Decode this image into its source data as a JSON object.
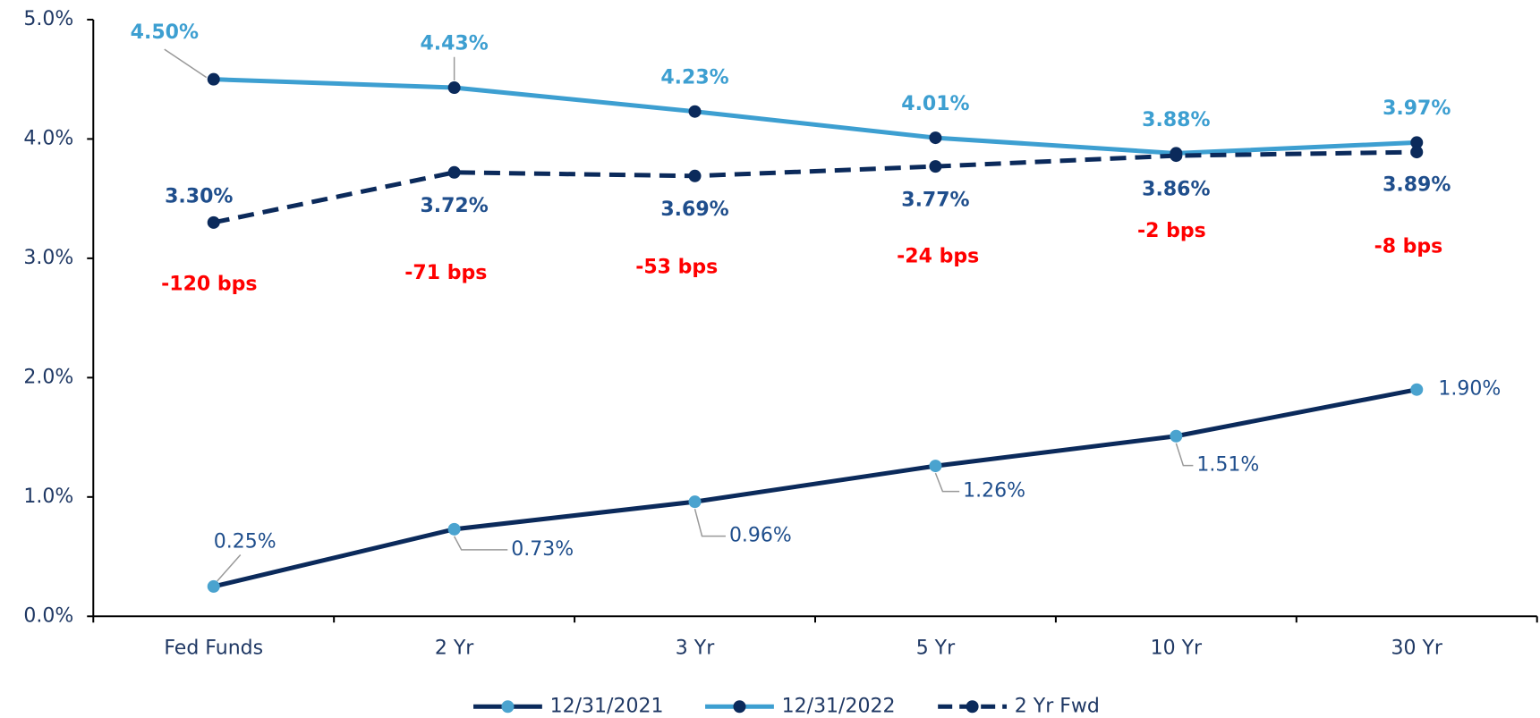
{
  "chart_data": {
    "type": "line",
    "categories": [
      "Fed Funds",
      "2 Yr",
      "3 Yr",
      "5 Yr",
      "10 Yr",
      "30 Yr"
    ],
    "ylim": [
      0,
      5
    ],
    "yticks": [
      {
        "value": 0,
        "label": "0.0%"
      },
      {
        "value": 1,
        "label": "1.0%"
      },
      {
        "value": 2,
        "label": "2.0%"
      },
      {
        "value": 3,
        "label": "3.0%"
      },
      {
        "value": 4,
        "label": "4.0%"
      },
      {
        "value": 5,
        "label": "5.0%"
      }
    ],
    "series": [
      {
        "name": "12/31/2021",
        "color": "#0b2a5b",
        "marker_color": "#4aa3cf",
        "dashed": false,
        "values": [
          0.25,
          0.73,
          0.96,
          1.26,
          1.51,
          1.9
        ],
        "value_labels": [
          "0.25%",
          "0.73%",
          "0.96%",
          "1.26%",
          "1.51%",
          "1.90%"
        ]
      },
      {
        "name": "12/31/2022",
        "color": "#3d9fd1",
        "marker_color": "#0b2a5b",
        "dashed": false,
        "values": [
          4.5,
          4.43,
          4.23,
          4.01,
          3.88,
          3.97
        ],
        "value_labels": [
          "4.50%",
          "4.43%",
          "4.23%",
          "4.01%",
          "3.88%",
          "3.97%"
        ]
      },
      {
        "name": "2 Yr Fwd",
        "color": "#0b2a5b",
        "marker_color": "#0b2a5b",
        "dashed": true,
        "values": [
          3.3,
          3.72,
          3.69,
          3.77,
          3.86,
          3.89
        ],
        "value_labels": [
          "3.30%",
          "3.72%",
          "3.69%",
          "3.77%",
          "3.86%",
          "3.89%"
        ]
      }
    ],
    "annotations": [
      "-120 bps",
      "-71 bps",
      "-53 bps",
      "-24 bps",
      "-2 bps",
      "-8 bps"
    ],
    "annotation_color": "#ff0000",
    "legend": "bottom"
  }
}
